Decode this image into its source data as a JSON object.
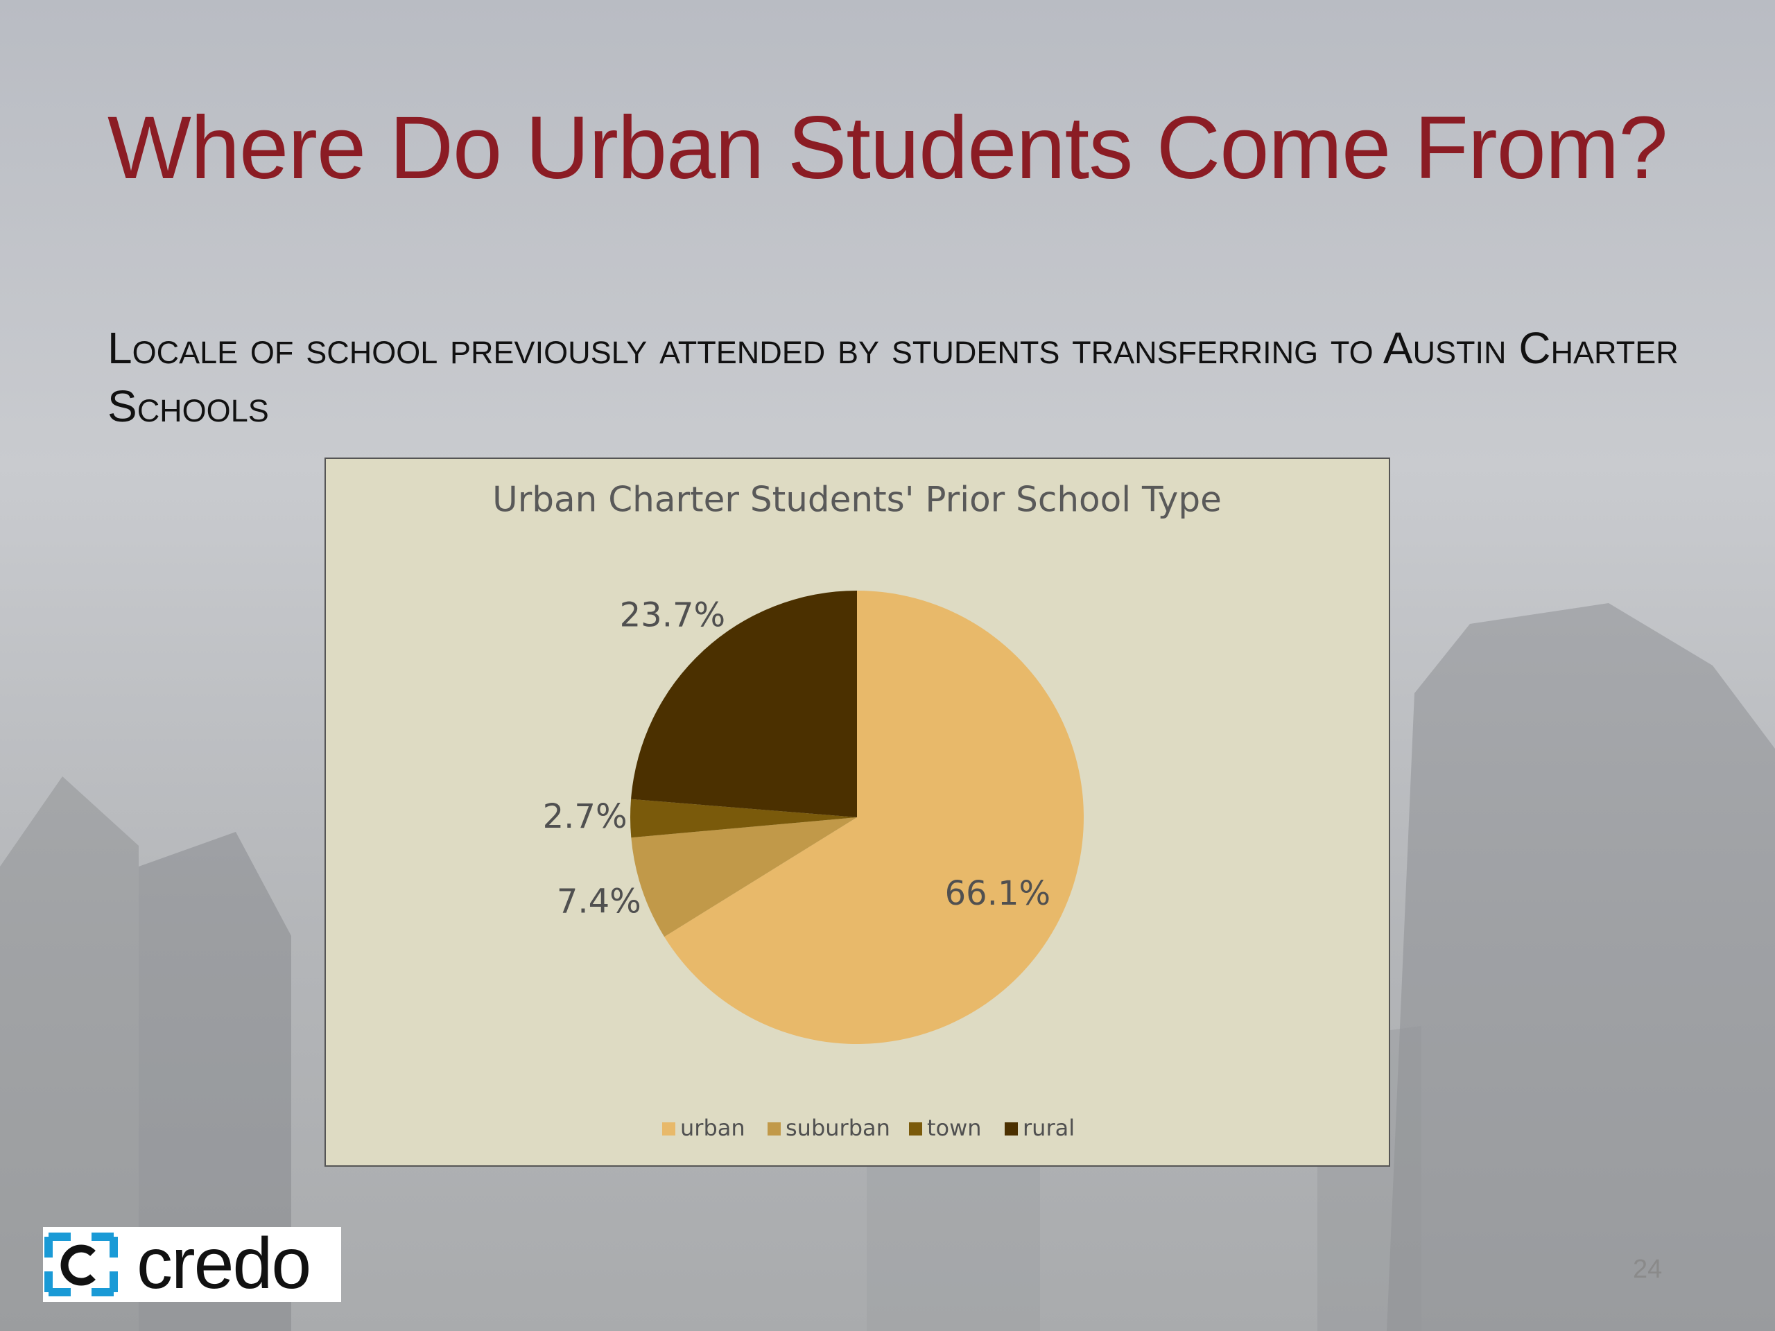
{
  "slide": {
    "title": "Where Do Urban Students Come From?",
    "subtitle": "Locale of school previously attended by students transferring to Austin Charter Schools",
    "logo": "credo",
    "page_number": "24"
  },
  "chart_data": {
    "type": "pie",
    "title": "Urban Charter Students' Prior School Type",
    "categories": [
      "urban",
      "suburban",
      "town",
      "rural"
    ],
    "values": [
      66.1,
      7.4,
      2.7,
      23.7
    ],
    "value_labels": [
      "66.1%",
      "7.4%",
      "2.7%",
      "23.7%"
    ],
    "colors": [
      "#e8b96a",
      "#c19949",
      "#7a5a0b",
      "#4b3000"
    ],
    "legend": "bottom"
  }
}
